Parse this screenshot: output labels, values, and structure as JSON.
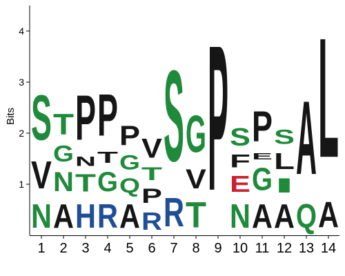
{
  "chart_data": {
    "type": "sequence-logo",
    "ylabel": "Bits",
    "ylim": [
      0,
      4.5
    ],
    "yticks": [
      1,
      2,
      3,
      4
    ],
    "colors": {
      "green": "#1e8a3a",
      "black": "#161616",
      "blue": "#1f4e96",
      "red": "#d01f2e"
    },
    "positions": [
      {
        "label": "1",
        "letters": [
          {
            "char": "N",
            "bits": 0.75,
            "color": "green"
          },
          {
            "char": "V",
            "bits": 0.85,
            "color": "black"
          },
          {
            "char": "S",
            "bits": 1.4,
            "color": "green"
          }
        ]
      },
      {
        "label": "2",
        "letters": [
          {
            "char": "A",
            "bits": 0.75,
            "color": "black"
          },
          {
            "char": "N",
            "bits": 0.6,
            "color": "green"
          },
          {
            "char": "G",
            "bits": 0.5,
            "color": "green"
          },
          {
            "char": "T",
            "bits": 0.65,
            "color": "green"
          }
        ]
      },
      {
        "label": "3",
        "letters": [
          {
            "char": "H",
            "bits": 0.75,
            "color": "blue"
          },
          {
            "char": "T",
            "bits": 0.55,
            "color": "green"
          },
          {
            "char": "N",
            "bits": 0.3,
            "color": "black"
          },
          {
            "char": "P",
            "bits": 1.4,
            "color": "black"
          }
        ]
      },
      {
        "label": "4",
        "letters": [
          {
            "char": "R",
            "bits": 0.75,
            "color": "blue"
          },
          {
            "char": "G",
            "bits": 0.6,
            "color": "green"
          },
          {
            "char": "T",
            "bits": 0.35,
            "color": "black"
          },
          {
            "char": "P",
            "bits": 1.3,
            "color": "black"
          }
        ]
      },
      {
        "label": "5",
        "letters": [
          {
            "char": "A",
            "bits": 0.75,
            "color": "black"
          },
          {
            "char": "Q",
            "bits": 0.45,
            "color": "green"
          },
          {
            "char": "G",
            "bits": 0.45,
            "color": "green"
          },
          {
            "char": "P",
            "bits": 0.6,
            "color": "black"
          }
        ]
      },
      {
        "label": "6",
        "letters": [
          {
            "char": "R",
            "bits": 0.55,
            "color": "blue"
          },
          {
            "char": "P",
            "bits": 0.45,
            "color": "black"
          },
          {
            "char": "T",
            "bits": 0.4,
            "color": "green"
          },
          {
            "char": "V",
            "bits": 0.6,
            "color": "black"
          }
        ]
      },
      {
        "label": "7",
        "letters": [
          {
            "char": "R",
            "bits": 0.9,
            "color": "blue"
          },
          {
            "char": "S",
            "bits": 2.85,
            "color": "green"
          }
        ]
      },
      {
        "label": "8",
        "letters": [
          {
            "char": "T",
            "bits": 0.8,
            "color": "green"
          },
          {
            "char": "V",
            "bits": 0.6,
            "color": "black"
          },
          {
            "char": "G",
            "bits": 1.15,
            "color": "green"
          }
        ]
      },
      {
        "label": "9",
        "letters": [
          {
            "char": "P",
            "bits": 4.55,
            "color": "black"
          }
        ]
      },
      {
        "label": "10",
        "letters": [
          {
            "char": "N",
            "bits": 0.75,
            "color": "green"
          },
          {
            "char": "E",
            "bits": 0.5,
            "color": "red"
          },
          {
            "char": "F",
            "bits": 0.4,
            "color": "black"
          },
          {
            "char": "S",
            "bits": 0.55,
            "color": "green"
          }
        ]
      },
      {
        "label": "11",
        "letters": [
          {
            "char": "A",
            "bits": 0.75,
            "color": "black"
          },
          {
            "char": "G",
            "bits": 0.7,
            "color": "green"
          },
          {
            "char": "E",
            "bits": 0.2,
            "color": "black"
          },
          {
            "char": "P",
            "bits": 0.95,
            "color": "black"
          }
        ]
      },
      {
        "label": "12",
        "letters": [
          {
            "char": "A",
            "bits": 0.75,
            "color": "black"
          },
          {
            "char": "I",
            "bits": 0.45,
            "color": "green"
          },
          {
            "char": "L",
            "bits": 0.5,
            "color": "black"
          },
          {
            "char": "S",
            "bits": 0.45,
            "color": "green"
          }
        ]
      },
      {
        "label": "13",
        "letters": [
          {
            "char": "Q",
            "bits": 0.75,
            "color": "green"
          },
          {
            "char": "A",
            "bits": 2.3,
            "color": "black"
          }
        ]
      },
      {
        "label": "14",
        "letters": [
          {
            "char": "A",
            "bits": 0.8,
            "color": "black"
          },
          {
            "char": "L",
            "bits": 3.75,
            "color": "black"
          }
        ]
      }
    ]
  }
}
